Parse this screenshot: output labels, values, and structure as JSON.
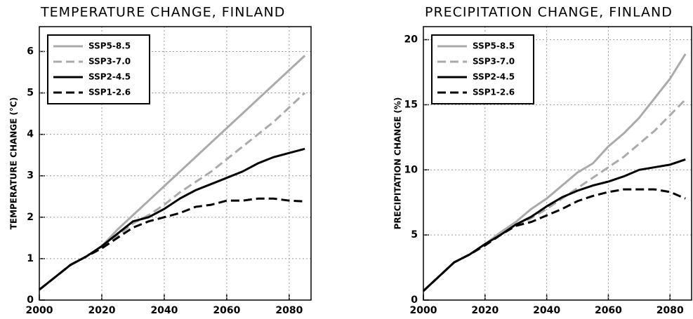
{
  "chart_data": [
    {
      "type": "line",
      "title": "TEMPERATURE CHANGE, FINLAND",
      "y_label": "TEMPERATURE CHANGE (°C)",
      "x": [
        2000,
        2005,
        2010,
        2015,
        2020,
        2025,
        2030,
        2035,
        2040,
        2045,
        2050,
        2055,
        2060,
        2065,
        2070,
        2075,
        2080,
        2085
      ],
      "xlim": [
        2000,
        2087
      ],
      "xticks": [
        2000,
        2020,
        2040,
        2060,
        2080
      ],
      "ylim": [
        0,
        6.6
      ],
      "yticks": [
        0,
        1,
        2,
        3,
        4,
        5,
        6
      ],
      "grid": true,
      "legend": "upper left",
      "series": [
        {
          "name": "SSP5-8.5",
          "color": "#aaaaaa",
          "dashed": false,
          "values": [
            0.25,
            0.55,
            0.85,
            1.05,
            1.3,
            1.7,
            2.05,
            2.4,
            2.75,
            3.1,
            3.45,
            3.8,
            4.15,
            4.5,
            4.85,
            5.2,
            5.55,
            5.9
          ]
        },
        {
          "name": "SSP3-7.0",
          "color": "#aaaaaa",
          "dashed": true,
          "values": [
            0.25,
            0.55,
            0.85,
            1.05,
            1.25,
            1.55,
            1.85,
            2.05,
            2.3,
            2.6,
            2.85,
            3.1,
            3.4,
            3.7,
            4.0,
            4.3,
            4.65,
            5.0
          ]
        },
        {
          "name": "SSP2-4.5",
          "color": "#000000",
          "dashed": false,
          "values": [
            0.25,
            0.55,
            0.85,
            1.05,
            1.3,
            1.6,
            1.9,
            2.0,
            2.2,
            2.45,
            2.65,
            2.8,
            2.95,
            3.1,
            3.3,
            3.45,
            3.55,
            3.65
          ]
        },
        {
          "name": "SSP1-2.6",
          "color": "#000000",
          "dashed": true,
          "values": [
            0.25,
            0.55,
            0.85,
            1.05,
            1.25,
            1.5,
            1.75,
            1.9,
            2.0,
            2.1,
            2.25,
            2.3,
            2.4,
            2.4,
            2.45,
            2.45,
            2.4,
            2.38
          ]
        }
      ]
    },
    {
      "type": "line",
      "title": "PRECIPITATION CHANGE, FINLAND",
      "y_label": "PRECIPITATION CHANGE (%)",
      "x": [
        2000,
        2005,
        2010,
        2015,
        2020,
        2025,
        2030,
        2035,
        2040,
        2045,
        2050,
        2055,
        2060,
        2065,
        2070,
        2075,
        2080,
        2085
      ],
      "xlim": [
        2000,
        2087
      ],
      "xticks": [
        2000,
        2020,
        2040,
        2060,
        2080
      ],
      "ylim": [
        0,
        21
      ],
      "yticks": [
        0,
        5,
        10,
        15,
        20
      ],
      "grid": true,
      "legend": "upper left",
      "series": [
        {
          "name": "SSP5-8.5",
          "color": "#aaaaaa",
          "dashed": false,
          "values": [
            0.7,
            1.8,
            2.9,
            3.5,
            4.3,
            5.2,
            6.0,
            7.0,
            7.8,
            8.8,
            9.8,
            10.5,
            11.8,
            12.8,
            14.0,
            15.5,
            17.0,
            18.9
          ]
        },
        {
          "name": "SSP3-7.0",
          "color": "#aaaaaa",
          "dashed": true,
          "values": [
            0.7,
            1.8,
            2.9,
            3.5,
            4.2,
            5.0,
            5.7,
            6.3,
            7.0,
            7.8,
            8.6,
            9.4,
            10.2,
            11.0,
            12.0,
            13.0,
            14.2,
            15.4
          ]
        },
        {
          "name": "SSP2-4.5",
          "color": "#000000",
          "dashed": false,
          "values": [
            0.7,
            1.8,
            2.9,
            3.5,
            4.3,
            5.0,
            5.8,
            6.4,
            7.2,
            7.9,
            8.4,
            8.8,
            9.1,
            9.5,
            10.0,
            10.2,
            10.4,
            10.8
          ]
        },
        {
          "name": "SSP1-2.6",
          "color": "#000000",
          "dashed": true,
          "values": [
            0.7,
            1.8,
            2.9,
            3.5,
            4.2,
            5.0,
            5.7,
            6.0,
            6.5,
            7.0,
            7.6,
            8.0,
            8.3,
            8.5,
            8.5,
            8.5,
            8.3,
            7.8
          ]
        }
      ]
    }
  ]
}
